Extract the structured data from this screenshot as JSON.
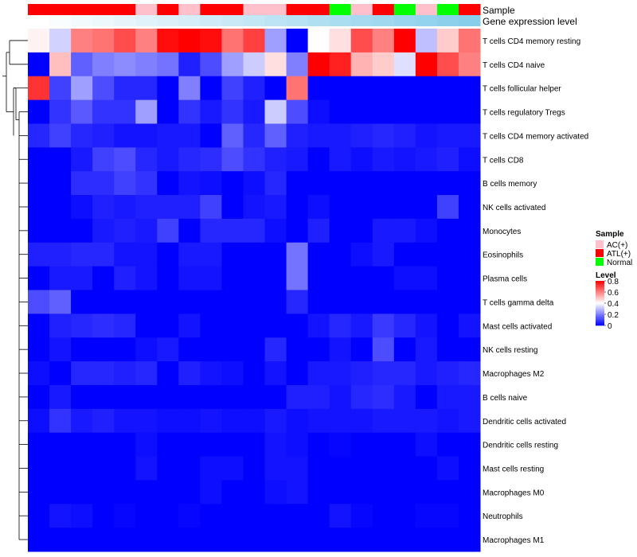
{
  "chart_data": {
    "type": "heatmap",
    "annotation_rows": [
      "Sample",
      "Gene expression level"
    ],
    "columns": [
      {
        "sample": "ATL(+)",
        "gene_level": 0.0
      },
      {
        "sample": "ATL(+)",
        "gene_level": 0.05
      },
      {
        "sample": "ATL(+)",
        "gene_level": 0.1
      },
      {
        "sample": "ATL(+)",
        "gene_level": 0.15
      },
      {
        "sample": "ATL(+)",
        "gene_level": 0.2
      },
      {
        "sample": "AC(+)",
        "gene_level": 0.25
      },
      {
        "sample": "ATL(+)",
        "gene_level": 0.3
      },
      {
        "sample": "AC(+)",
        "gene_level": 0.35
      },
      {
        "sample": "ATL(+)",
        "gene_level": 0.4
      },
      {
        "sample": "ATL(+)",
        "gene_level": 0.45
      },
      {
        "sample": "AC(+)",
        "gene_level": 0.5
      },
      {
        "sample": "AC(+)",
        "gene_level": 0.55
      },
      {
        "sample": "ATL(+)",
        "gene_level": 0.6
      },
      {
        "sample": "ATL(+)",
        "gene_level": 0.65
      },
      {
        "sample": "Normal",
        "gene_level": 0.7
      },
      {
        "sample": "AC(+)",
        "gene_level": 0.75
      },
      {
        "sample": "ATL(+)",
        "gene_level": 0.8
      },
      {
        "sample": "Normal",
        "gene_level": 0.85
      },
      {
        "sample": "AC(+)",
        "gene_level": 0.9
      },
      {
        "sample": "Normal",
        "gene_level": 0.95
      },
      {
        "sample": "ATL(+)",
        "gene_level": 1.0
      }
    ],
    "rows": [
      "T cells CD4 memory resting",
      "T cells CD4 naive",
      "T cells follicular helper",
      "T cells regulatory  Tregs",
      "T cells CD4 memory activated",
      "T cells CD8",
      "B cells memory",
      "NK cells activated",
      "Monocytes",
      "Eosinophils",
      "Plasma cells",
      "T cells gamma delta",
      "Mast cells activated",
      "NK cells resting",
      "Macrophages M2",
      "B cells naive",
      "Dendritic cells activated",
      "Dendritic cells resting",
      "Mast cells resting",
      "Macrophages M0",
      "Neutrophils",
      "Macrophages M1"
    ],
    "values": [
      [
        0.42,
        0.33,
        0.6,
        0.62,
        0.68,
        0.6,
        0.78,
        0.8,
        0.78,
        0.62,
        0.7,
        0.25,
        0.0,
        0.4,
        0.45,
        0.68,
        0.6,
        0.8,
        0.3,
        0.48,
        0.62
      ],
      [
        0.0,
        0.5,
        0.15,
        0.2,
        0.22,
        0.2,
        0.18,
        0.05,
        0.12,
        0.25,
        0.32,
        0.45,
        0.2,
        0.8,
        0.75,
        0.52,
        0.48,
        0.35,
        0.8,
        0.68,
        0.6
      ],
      [
        0.72,
        0.1,
        0.25,
        0.12,
        0.06,
        0.06,
        0.0,
        0.2,
        0.0,
        0.1,
        0.05,
        0.0,
        0.62,
        0.0,
        0.0,
        0.0,
        0.0,
        0.0,
        0.0,
        0.0,
        0.0
      ],
      [
        0.0,
        0.08,
        0.14,
        0.08,
        0.08,
        0.25,
        0.0,
        0.08,
        0.04,
        0.08,
        0.04,
        0.32,
        0.12,
        0.02,
        0.0,
        0.0,
        0.0,
        0.0,
        0.0,
        0.0,
        0.0
      ],
      [
        0.06,
        0.1,
        0.06,
        0.05,
        0.03,
        0.03,
        0.04,
        0.04,
        0.0,
        0.15,
        0.06,
        0.15,
        0.05,
        0.04,
        0.04,
        0.05,
        0.06,
        0.05,
        0.03,
        0.04,
        0.04
      ],
      [
        0.0,
        0.0,
        0.04,
        0.1,
        0.12,
        0.06,
        0.04,
        0.06,
        0.07,
        0.12,
        0.08,
        0.05,
        0.04,
        0.0,
        0.04,
        0.02,
        0.04,
        0.03,
        0.04,
        0.05,
        0.02
      ],
      [
        0.0,
        0.0,
        0.07,
        0.07,
        0.1,
        0.08,
        0.0,
        0.03,
        0.02,
        0.0,
        0.02,
        0.06,
        0.0,
        0.0,
        0.0,
        0.0,
        0.0,
        0.0,
        0.0,
        0.0,
        0.0
      ],
      [
        0.0,
        0.0,
        0.02,
        0.05,
        0.04,
        0.05,
        0.05,
        0.05,
        0.1,
        0.0,
        0.03,
        0.04,
        0.0,
        0.02,
        0.0,
        0.0,
        0.0,
        0.0,
        0.0,
        0.1,
        0.0
      ],
      [
        0.0,
        0.0,
        0.0,
        0.04,
        0.05,
        0.04,
        0.1,
        0.0,
        0.06,
        0.06,
        0.06,
        0.02,
        0.0,
        0.05,
        0.0,
        0.0,
        0.04,
        0.04,
        0.02,
        0.0,
        0.0
      ],
      [
        0.05,
        0.05,
        0.06,
        0.06,
        0.03,
        0.03,
        0.0,
        0.04,
        0.04,
        0.0,
        0.0,
        0.0,
        0.18,
        0.0,
        0.0,
        0.02,
        0.04,
        0.0,
        0.0,
        0.0,
        0.0
      ],
      [
        0.0,
        0.04,
        0.04,
        0.0,
        0.05,
        0.03,
        0.0,
        0.03,
        0.03,
        0.0,
        0.0,
        0.0,
        0.18,
        0.0,
        0.0,
        0.0,
        0.0,
        0.02,
        0.02,
        0.0,
        0.0
      ],
      [
        0.12,
        0.15,
        0.0,
        0.0,
        0.0,
        0.0,
        0.0,
        0.0,
        0.0,
        0.0,
        0.0,
        0.0,
        0.06,
        0.0,
        0.0,
        0.0,
        0.0,
        0.0,
        0.0,
        0.0,
        0.0
      ],
      [
        0.0,
        0.05,
        0.06,
        0.07,
        0.06,
        0.0,
        0.0,
        0.03,
        0.0,
        0.0,
        0.0,
        0.0,
        0.0,
        0.03,
        0.06,
        0.04,
        0.09,
        0.06,
        0.03,
        0.0,
        0.03
      ],
      [
        0.0,
        0.03,
        0.0,
        0.0,
        0.0,
        0.02,
        0.04,
        0.0,
        0.0,
        0.0,
        0.0,
        0.06,
        0.0,
        0.0,
        0.03,
        0.0,
        0.12,
        0.0,
        0.04,
        0.0,
        0.0
      ],
      [
        0.02,
        0.0,
        0.06,
        0.06,
        0.05,
        0.06,
        0.0,
        0.05,
        0.03,
        0.02,
        0.0,
        0.03,
        0.0,
        0.04,
        0.04,
        0.05,
        0.06,
        0.06,
        0.04,
        0.05,
        0.06
      ],
      [
        0.0,
        0.04,
        0.0,
        0.0,
        0.0,
        0.0,
        0.0,
        0.0,
        0.0,
        0.0,
        0.0,
        0.0,
        0.05,
        0.05,
        0.03,
        0.06,
        0.07,
        0.04,
        0.0,
        0.04,
        0.04
      ],
      [
        0.02,
        0.08,
        0.04,
        0.05,
        0.03,
        0.03,
        0.02,
        0.02,
        0.03,
        0.02,
        0.02,
        0.04,
        0.02,
        0.03,
        0.03,
        0.03,
        0.04,
        0.04,
        0.04,
        0.03,
        0.04
      ],
      [
        0.0,
        0.0,
        0.0,
        0.0,
        0.0,
        0.02,
        0.0,
        0.0,
        0.0,
        0.0,
        0.0,
        0.03,
        0.02,
        0.0,
        0.01,
        0.0,
        0.0,
        0.0,
        0.02,
        0.0,
        0.0
      ],
      [
        0.0,
        0.0,
        0.0,
        0.0,
        0.0,
        0.03,
        0.0,
        0.0,
        0.02,
        0.02,
        0.0,
        0.03,
        0.03,
        0.0,
        0.0,
        0.0,
        0.0,
        0.0,
        0.0,
        0.02,
        0.0
      ],
      [
        0.0,
        0.0,
        0.0,
        0.0,
        0.0,
        0.0,
        0.0,
        0.0,
        0.02,
        0.0,
        0.0,
        0.02,
        0.03,
        0.0,
        0.0,
        0.0,
        0.0,
        0.0,
        0.0,
        0.0,
        0.0
      ],
      [
        0.0,
        0.03,
        0.02,
        0.0,
        0.01,
        0.0,
        0.0,
        0.01,
        0.0,
        0.0,
        0.0,
        0.0,
        0.0,
        0.0,
        0.03,
        0.01,
        0.0,
        0.0,
        0.01,
        0.01,
        0.0
      ],
      [
        0.0,
        0.0,
        0.0,
        0.0,
        0.0,
        0.0,
        0.0,
        0.0,
        0.0,
        0.0,
        0.0,
        0.0,
        0.0,
        0.0,
        0.0,
        0.0,
        0.0,
        0.0,
        0.0,
        0.0,
        0.0
      ]
    ],
    "color_scale": {
      "min": 0,
      "max": 0.8,
      "colors": [
        "#0000ff",
        "#ffffff",
        "#ff0000"
      ]
    },
    "sample_colors": {
      "AC(+)": "#ffc0cb",
      "ATL(+)": "#ff0000",
      "Normal": "#00ff00"
    },
    "gene_level_colors": [
      "#ffffff",
      "#87ceeb"
    ],
    "legend": {
      "sample_title": "Sample",
      "sample_entries": [
        "AC(+)",
        "ATL(+)",
        "Normal"
      ],
      "level_title": "Level",
      "level_ticks": [
        0.8,
        0.6,
        0.4,
        0.2,
        0
      ],
      "level_tick_labels": [
        "0.8",
        "0.6",
        "0.4",
        "0.2",
        "0"
      ]
    },
    "dendrogram": "rows"
  }
}
